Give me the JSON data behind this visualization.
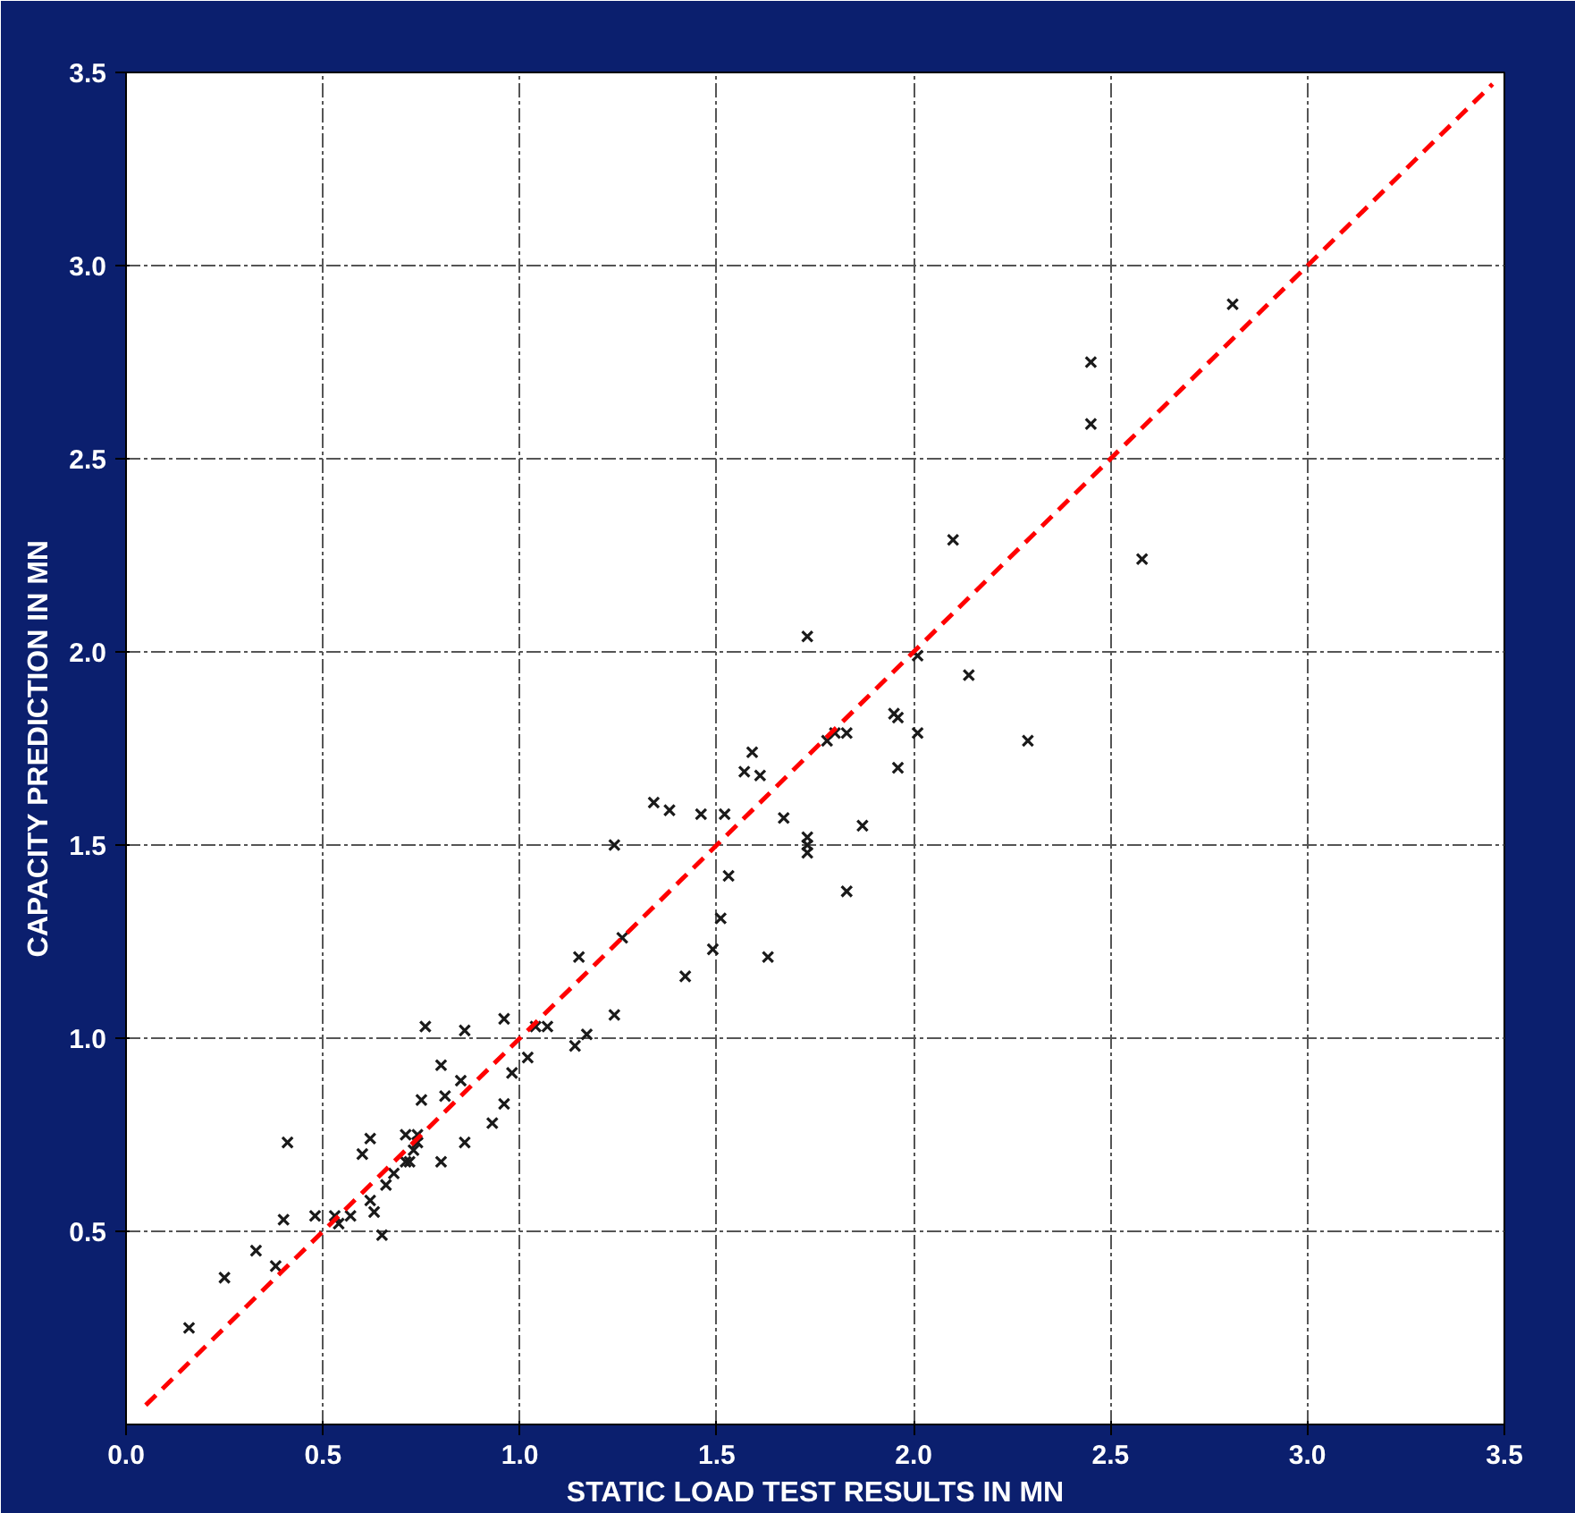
{
  "chart_data": {
    "type": "scatter",
    "xlabel": "STATIC LOAD TEST RESULTS IN MN",
    "ylabel": "CAPACITY PREDICTION IN MN",
    "xlim": [
      0,
      3.5
    ],
    "ylim": [
      0,
      3.5
    ],
    "xticks": [
      {
        "value": 0,
        "label": "0.0"
      },
      {
        "value": 0.5,
        "label": "0.5"
      },
      {
        "value": 1,
        "label": "1.0"
      },
      {
        "value": 1.5,
        "label": "1.5"
      },
      {
        "value": 2,
        "label": "2.0"
      },
      {
        "value": 2.5,
        "label": "2.5"
      },
      {
        "value": 3,
        "label": "3.0"
      },
      {
        "value": 3.5,
        "label": "3.5"
      }
    ],
    "yticks": [
      {
        "value": 0.5,
        "label": "0.5"
      },
      {
        "value": 1,
        "label": "1.0"
      },
      {
        "value": 1.5,
        "label": "1.5"
      },
      {
        "value": 2,
        "label": "2.0"
      },
      {
        "value": 2.5,
        "label": "2.5"
      },
      {
        "value": 3,
        "label": "3.0"
      },
      {
        "value": 3.5,
        "label": "3.5"
      }
    ],
    "grid": true,
    "series": [
      {
        "color": "#1a1a1a",
        "marker": "cross",
        "x": [
          0.16,
          0.25,
          0.33,
          0.38,
          0.41,
          0.4,
          0.48,
          0.54,
          0.57,
          0.53,
          0.65,
          0.63,
          0.62,
          0.66,
          0.68,
          0.71,
          0.72,
          0.73,
          0.74,
          0.74,
          0.71,
          0.62,
          0.6,
          0.8,
          0.86,
          0.81,
          0.75,
          0.85,
          0.8,
          0.93,
          0.96,
          0.98,
          1.02,
          0.96,
          0.86,
          0.76,
          1.04,
          1.07,
          1.14,
          1.17,
          1.24,
          1.15,
          1.26,
          1.42,
          1.49,
          1.51,
          1.53,
          1.63,
          1.83,
          1.87,
          1.73,
          1.73,
          1.73,
          1.67,
          1.24,
          1.34,
          1.38,
          1.46,
          1.52,
          1.57,
          1.59,
          1.61,
          1.73,
          1.78,
          1.8,
          1.83,
          1.95,
          1.96,
          1.96,
          2.01,
          2.01,
          2.14,
          2.29,
          2.81,
          2.45,
          2.45,
          2.1,
          2.58
        ],
        "values": [
          0.25,
          0.38,
          0.45,
          0.41,
          0.73,
          0.53,
          0.54,
          0.52,
          0.54,
          0.54,
          0.49,
          0.55,
          0.58,
          0.62,
          0.65,
          0.68,
          0.68,
          0.71,
          0.73,
          0.75,
          0.75,
          0.74,
          0.7,
          0.68,
          0.73,
          0.85,
          0.84,
          0.89,
          0.93,
          0.78,
          0.83,
          0.91,
          0.95,
          1.05,
          1.02,
          1.03,
          1.03,
          1.03,
          0.98,
          1.01,
          1.06,
          1.21,
          1.26,
          1.16,
          1.23,
          1.31,
          1.42,
          1.21,
          1.38,
          1.55,
          1.52,
          1.5,
          1.48,
          1.57,
          1.5,
          1.61,
          1.59,
          1.58,
          1.58,
          1.69,
          1.74,
          1.68,
          2.04,
          1.77,
          1.79,
          1.79,
          1.84,
          1.83,
          1.7,
          1.99,
          1.79,
          1.94,
          1.77,
          2.9,
          2.75,
          2.59,
          2.29,
          2.24
        ]
      },
      {
        "type": "line",
        "color": "#ff0000",
        "line_style": "dashed",
        "x": [
          0.05,
          3.47
        ],
        "values": [
          0.05,
          3.47
        ]
      }
    ]
  }
}
